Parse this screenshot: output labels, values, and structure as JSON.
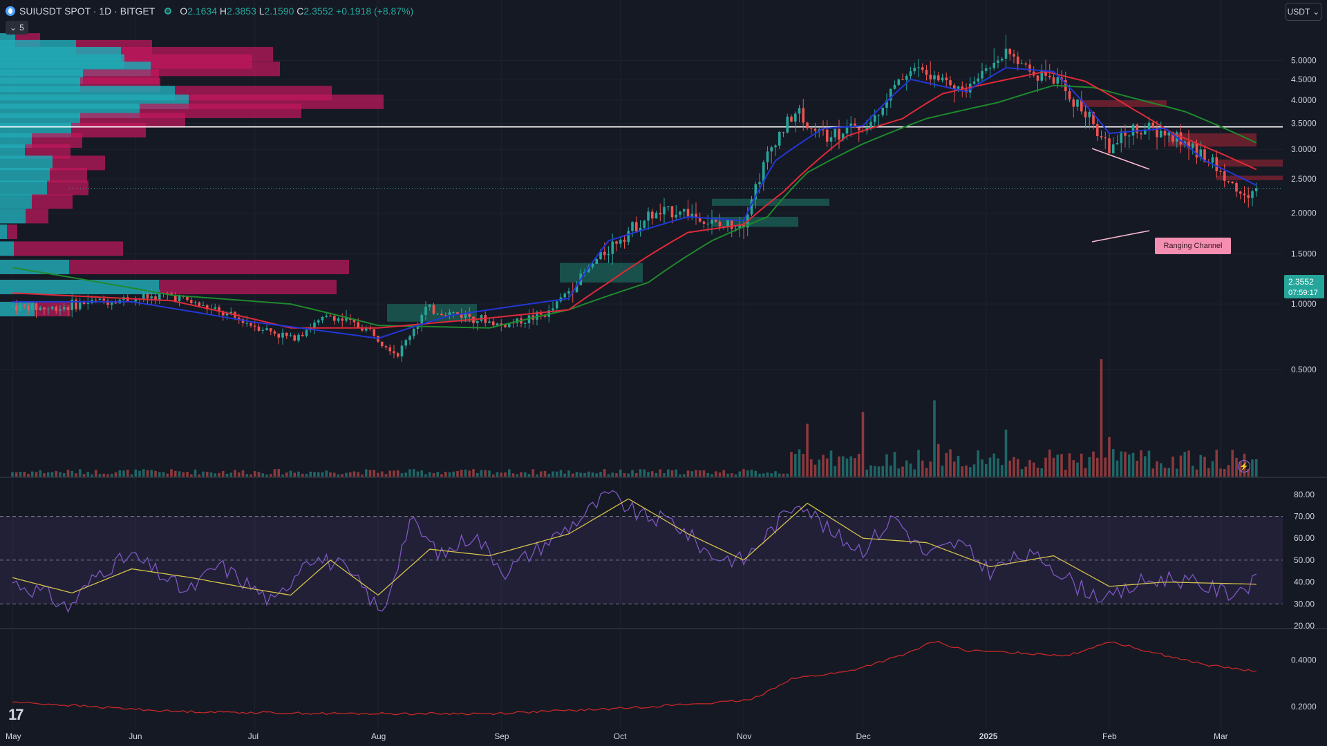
{
  "header": {
    "symbol": "SUIUSDT SPOT · 1D · BITGET",
    "open_label": "O",
    "open": "2.1634",
    "high_label": "H",
    "high": "2.3853",
    "low_label": "L",
    "low": "2.1590",
    "close_label": "C",
    "close": "2.3552",
    "change": "+0.1918 (+8.87%)"
  },
  "indicator_toggle": {
    "count": "5"
  },
  "currency_button": {
    "label": "USDT"
  },
  "price_badge": {
    "price": "2.3552",
    "countdown": "07:59:17"
  },
  "annotation": {
    "label": "Ranging Channel"
  },
  "colors": {
    "up": "#26a69a",
    "down": "#ef5350",
    "bg": "#151924",
    "ema_fast": "#2337d6",
    "ema_mid": "#e02a38",
    "ema_slow": "#1e8a2c",
    "rsi": "#7e57c2",
    "rsi_ma": "#d6c24a",
    "lower": "#c62828"
  },
  "chart_data": [
    {
      "type": "candlestick",
      "ylim": [
        0.1,
        5.5
      ],
      "y_ticks": [
        "5.0000",
        "4.5000",
        "4.0000",
        "3.5000",
        "3.0000",
        "2.5000",
        "2.0000",
        "1.5000",
        "1.0000",
        "0.5000"
      ],
      "y_tick_values": [
        5.0,
        4.5,
        4.0,
        3.5,
        3.0,
        2.5,
        2.0,
        1.5,
        1.0,
        0.5
      ],
      "x_ticks": [
        "May",
        "Jun",
        "Jul",
        "Aug",
        "Sep",
        "Oct",
        "Nov",
        "Dec",
        "2025",
        "Feb",
        "Mar"
      ],
      "x_tick_days": [
        0,
        31,
        61,
        92,
        123,
        153,
        184,
        214,
        245,
        276,
        304
      ],
      "horizontal_line": 3.43,
      "path_points": [
        [
          0,
          0.98
        ],
        [
          10,
          0.96
        ],
        [
          20,
          1.02
        ],
        [
          31,
          1.05
        ],
        [
          40,
          1.08
        ],
        [
          50,
          0.95
        ],
        [
          61,
          0.82
        ],
        [
          70,
          0.72
        ],
        [
          80,
          0.9
        ],
        [
          90,
          0.78
        ],
        [
          97,
          0.6
        ],
        [
          104,
          0.95
        ],
        [
          115,
          0.9
        ],
        [
          123,
          0.82
        ],
        [
          135,
          0.92
        ],
        [
          143,
          1.25
        ],
        [
          153,
          1.7
        ],
        [
          160,
          1.95
        ],
        [
          168,
          2.05
        ],
        [
          178,
          1.82
        ],
        [
          184,
          1.9
        ],
        [
          192,
          3.2
        ],
        [
          197,
          3.7
        ],
        [
          204,
          3.3
        ],
        [
          214,
          3.4
        ],
        [
          220,
          4.05
        ],
        [
          226,
          4.8
        ],
        [
          232,
          4.55
        ],
        [
          240,
          4.2
        ],
        [
          245,
          4.8
        ],
        [
          250,
          5.2
        ],
        [
          256,
          4.8
        ],
        [
          262,
          4.5
        ],
        [
          268,
          3.9
        ],
        [
          276,
          3.0
        ],
        [
          282,
          3.4
        ],
        [
          290,
          3.3
        ],
        [
          298,
          3.0
        ],
        [
          304,
          2.6
        ],
        [
          310,
          2.2
        ],
        [
          313,
          2.3552
        ]
      ],
      "ema_fast_points": [
        [
          0,
          1.02
        ],
        [
          30,
          1.02
        ],
        [
          60,
          0.85
        ],
        [
          92,
          0.72
        ],
        [
          110,
          0.9
        ],
        [
          140,
          1.05
        ],
        [
          150,
          1.65
        ],
        [
          170,
          1.95
        ],
        [
          184,
          1.9
        ],
        [
          192,
          2.8
        ],
        [
          204,
          3.4
        ],
        [
          214,
          3.45
        ],
        [
          226,
          4.5
        ],
        [
          240,
          4.2
        ],
        [
          250,
          4.8
        ],
        [
          262,
          4.7
        ],
        [
          276,
          3.3
        ],
        [
          290,
          3.4
        ],
        [
          300,
          2.8
        ],
        [
          313,
          2.4
        ]
      ],
      "ema_mid_points": [
        [
          0,
          1.1
        ],
        [
          40,
          1.03
        ],
        [
          70,
          0.8
        ],
        [
          92,
          0.8
        ],
        [
          120,
          0.88
        ],
        [
          140,
          0.95
        ],
        [
          150,
          1.2
        ],
        [
          170,
          1.75
        ],
        [
          184,
          1.85
        ],
        [
          194,
          2.3
        ],
        [
          210,
          3.25
        ],
        [
          224,
          3.6
        ],
        [
          234,
          4.15
        ],
        [
          248,
          4.45
        ],
        [
          260,
          4.7
        ],
        [
          270,
          4.45
        ],
        [
          282,
          3.8
        ],
        [
          292,
          3.3
        ],
        [
          300,
          3.05
        ],
        [
          313,
          2.65
        ]
      ],
      "ema_slow_points": [
        [
          0,
          1.35
        ],
        [
          40,
          1.08
        ],
        [
          70,
          1.0
        ],
        [
          92,
          0.82
        ],
        [
          120,
          0.8
        ],
        [
          140,
          0.95
        ],
        [
          160,
          1.2
        ],
        [
          176,
          1.65
        ],
        [
          190,
          1.95
        ],
        [
          200,
          2.6
        ],
        [
          214,
          3.1
        ],
        [
          230,
          3.6
        ],
        [
          248,
          3.95
        ],
        [
          262,
          4.35
        ],
        [
          272,
          4.3
        ],
        [
          282,
          4.05
        ],
        [
          295,
          3.75
        ],
        [
          305,
          3.4
        ],
        [
          313,
          3.12
        ]
      ],
      "volume_spikes": [
        [
          274,
          1.0
        ],
        [
          200,
          0.45
        ],
        [
          214,
          0.55
        ],
        [
          232,
          0.65
        ],
        [
          250,
          0.4
        ]
      ],
      "volume_profile": [
        {
          "price": 5.55,
          "buy": 22,
          "sell": 36
        },
        {
          "price": 5.35,
          "buy": 110,
          "sell": 110
        },
        {
          "price": 5.15,
          "buy": 175,
          "sell": 220
        },
        {
          "price": 4.95,
          "buy": 180,
          "sell": 185
        },
        {
          "price": 4.75,
          "buy": 218,
          "sell": 187
        },
        {
          "price": 4.55,
          "buy": 120,
          "sell": 110
        },
        {
          "price": 4.35,
          "buy": 116,
          "sell": 116
        },
        {
          "price": 4.15,
          "buy": 253,
          "sell": 227
        },
        {
          "price": 3.95,
          "buy": 273,
          "sell": 282
        },
        {
          "price": 3.75,
          "buy": 202,
          "sell": 234
        },
        {
          "price": 3.55,
          "buy": 116,
          "sell": 152
        },
        {
          "price": 3.35,
          "buy": 103,
          "sell": 108
        },
        {
          "price": 3.15,
          "buy": 46,
          "sell": 73
        },
        {
          "price": 2.95,
          "buy": 36,
          "sell": 66
        },
        {
          "price": 2.75,
          "buy": 76,
          "sell": 76
        },
        {
          "price": 2.55,
          "buy": 72,
          "sell": 54
        },
        {
          "price": 2.35,
          "buy": 68,
          "sell": 60
        },
        {
          "price": 2.15,
          "buy": 46,
          "sell": 59
        },
        {
          "price": 1.95,
          "buy": 37,
          "sell": 33
        },
        {
          "price": 1.75,
          "buy": 10,
          "sell": 15
        },
        {
          "price": 1.55,
          "buy": 20,
          "sell": 158
        },
        {
          "price": 1.35,
          "buy": 100,
          "sell": 405
        },
        {
          "price": 1.15,
          "buy": 230,
          "sell": 257
        },
        {
          "price": 0.95,
          "buy": 50,
          "sell": 52
        }
      ]
    },
    {
      "type": "line",
      "name": "RSI",
      "ylim": [
        20,
        85
      ],
      "y_ticks": [
        "80.00",
        "70.00",
        "60.00",
        "50.00",
        "40.00",
        "30.00",
        "20.00"
      ],
      "y_tick_values": [
        80,
        70,
        60,
        50,
        40,
        30,
        20
      ],
      "band": [
        30,
        70
      ],
      "rsi_points": [
        [
          0,
          40
        ],
        [
          8,
          35
        ],
        [
          14,
          28
        ],
        [
          22,
          45
        ],
        [
          30,
          52
        ],
        [
          36,
          45
        ],
        [
          44,
          35
        ],
        [
          52,
          48
        ],
        [
          60,
          38
        ],
        [
          66,
          30
        ],
        [
          74,
          52
        ],
        [
          82,
          48
        ],
        [
          88,
          38
        ],
        [
          93,
          25
        ],
        [
          100,
          68
        ],
        [
          108,
          52
        ],
        [
          116,
          62
        ],
        [
          124,
          45
        ],
        [
          132,
          55
        ],
        [
          142,
          68
        ],
        [
          150,
          80
        ],
        [
          158,
          70
        ],
        [
          166,
          68
        ],
        [
          176,
          52
        ],
        [
          184,
          50
        ],
        [
          190,
          62
        ],
        [
          198,
          78
        ],
        [
          206,
          62
        ],
        [
          214,
          55
        ],
        [
          222,
          70
        ],
        [
          230,
          52
        ],
        [
          238,
          58
        ],
        [
          246,
          45
        ],
        [
          254,
          52
        ],
        [
          260,
          50
        ],
        [
          268,
          38
        ],
        [
          276,
          32
        ],
        [
          284,
          40
        ],
        [
          292,
          42
        ],
        [
          300,
          38
        ],
        [
          306,
          35
        ],
        [
          313,
          40
        ]
      ],
      "rsi_ma_points": [
        [
          0,
          42
        ],
        [
          15,
          35
        ],
        [
          30,
          46
        ],
        [
          45,
          42
        ],
        [
          60,
          37
        ],
        [
          70,
          34
        ],
        [
          80,
          50
        ],
        [
          92,
          34
        ],
        [
          105,
          55
        ],
        [
          120,
          52
        ],
        [
          140,
          62
        ],
        [
          155,
          78
        ],
        [
          170,
          62
        ],
        [
          184,
          50
        ],
        [
          200,
          76
        ],
        [
          214,
          60
        ],
        [
          230,
          58
        ],
        [
          246,
          47
        ],
        [
          262,
          52
        ],
        [
          276,
          38
        ],
        [
          290,
          40
        ],
        [
          313,
          39
        ]
      ]
    },
    {
      "type": "line",
      "name": "",
      "ylim": [
        0.12,
        0.52
      ],
      "y_ticks": [
        "0.4000",
        "0.2000"
      ],
      "y_tick_values": [
        0.4,
        0.2
      ],
      "points": [
        [
          0,
          0.22
        ],
        [
          40,
          0.18
        ],
        [
          80,
          0.17
        ],
        [
          120,
          0.17
        ],
        [
          150,
          0.19
        ],
        [
          170,
          0.21
        ],
        [
          180,
          0.22
        ],
        [
          186,
          0.23
        ],
        [
          196,
          0.32
        ],
        [
          210,
          0.35
        ],
        [
          224,
          0.42
        ],
        [
          232,
          0.48
        ],
        [
          240,
          0.44
        ],
        [
          254,
          0.43
        ],
        [
          266,
          0.42
        ],
        [
          276,
          0.48
        ],
        [
          290,
          0.42
        ],
        [
          300,
          0.38
        ],
        [
          313,
          0.35
        ]
      ]
    }
  ]
}
